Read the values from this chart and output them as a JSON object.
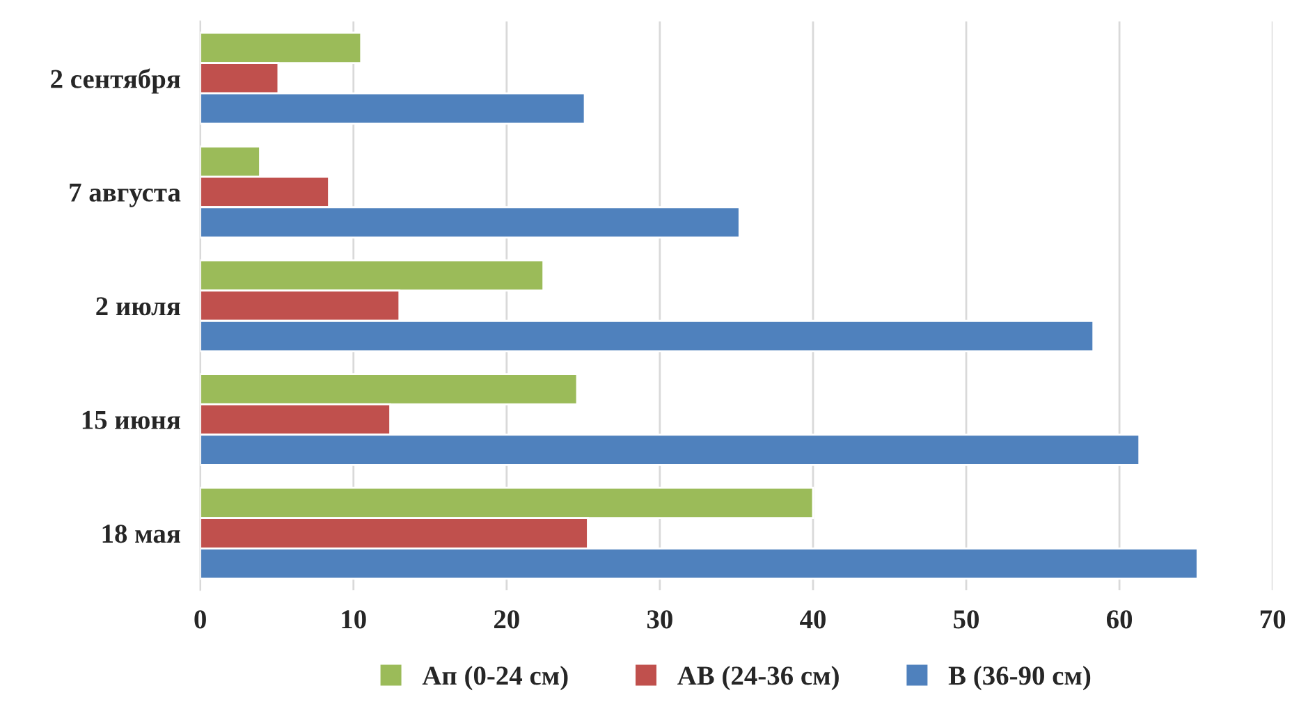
{
  "chart_data": {
    "type": "bar",
    "orientation": "horizontal",
    "categories": [
      "2 сентября",
      "7 августа",
      "2 июля",
      "15 июня",
      "18 мая"
    ],
    "series": [
      {
        "name": "Ап (0-24 см)",
        "color": "#9bbb59",
        "values": [
          10.5,
          3.9,
          22.4,
          24.6,
          40.0
        ]
      },
      {
        "name": "АВ (24-36 см)",
        "color": "#c0504d",
        "values": [
          5.1,
          8.4,
          13.0,
          12.4,
          25.3
        ]
      },
      {
        "name": "В (36-90 см)",
        "color": "#4f81bd",
        "values": [
          25.1,
          35.2,
          58.3,
          61.3,
          65.1
        ]
      }
    ],
    "xlim": [
      0,
      70
    ],
    "xticks": [
      0,
      10,
      20,
      30,
      40,
      50,
      60,
      70
    ],
    "grid": "x",
    "legend": "bottom"
  }
}
